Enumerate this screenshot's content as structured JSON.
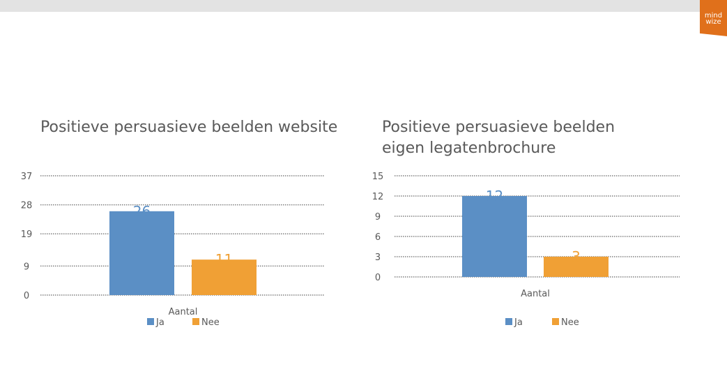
{
  "logo": {
    "line1": "mind",
    "line2": "wize"
  },
  "colors": {
    "ja": "#5b8fc5",
    "nee": "#f0a035",
    "grid": "#7f7f7f",
    "logo": "#e0701b"
  },
  "chart_data": [
    {
      "type": "bar",
      "title_lines": [
        "Positieve persuasieve beelden website"
      ],
      "categories": [
        "Aantal"
      ],
      "series": [
        {
          "name": "Ja",
          "values": [
            26
          ]
        },
        {
          "name": "Nee",
          "values": [
            11
          ]
        }
      ],
      "yticks": [
        0,
        9,
        19,
        28,
        37
      ],
      "ylim": [
        0,
        37
      ],
      "grid": true,
      "legend": "bottom"
    },
    {
      "type": "bar",
      "title_lines": [
        "Positieve persuasieve beelden",
        "eigen legatenbrochure"
      ],
      "categories": [
        "Aantal"
      ],
      "series": [
        {
          "name": "Ja",
          "values": [
            12
          ]
        },
        {
          "name": "Nee",
          "values": [
            3
          ]
        }
      ],
      "yticks": [
        0,
        3,
        6,
        9,
        12,
        15
      ],
      "ylim": [
        0,
        15
      ],
      "grid": true,
      "legend": "bottom"
    }
  ]
}
